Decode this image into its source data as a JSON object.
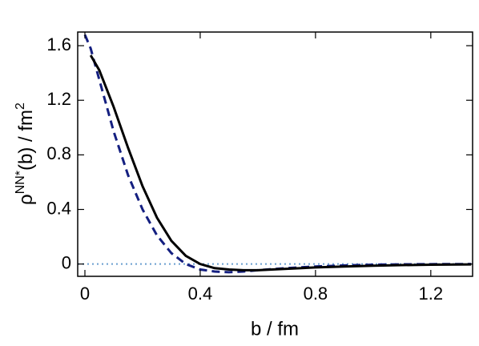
{
  "chart_data": {
    "type": "line",
    "xlabel": "b / fm",
    "ylabel_parts": [
      {
        "text": "ρ"
      },
      {
        "text": "NN*",
        "sup": true
      },
      {
        "text": "(b) / fm"
      },
      {
        "text": "2",
        "sup": true
      }
    ],
    "xlim": [
      -0.025,
      1.345
    ],
    "ylim": [
      -0.09,
      1.7
    ],
    "xticks": [
      0,
      0.4,
      0.8,
      1.2
    ],
    "yticks": [
      0,
      0.4,
      0.8,
      1.2,
      1.6
    ],
    "series": [
      {
        "color": "#6a9fcf",
        "dash": "2 4",
        "width": 2,
        "x": [
          -0.025,
          1.345
        ],
        "values": [
          0,
          0
        ]
      },
      {
        "color": "#141f80",
        "dash": "10 6",
        "width": 3,
        "x": [
          0,
          0.02,
          0.05,
          0.1,
          0.15,
          0.2,
          0.25,
          0.3,
          0.35,
          0.4,
          0.45,
          0.5,
          0.55,
          0.6,
          0.7,
          0.8,
          0.9,
          1.0,
          1.1,
          1.2,
          1.34
        ],
        "values": [
          1.68,
          1.58,
          1.35,
          0.97,
          0.65,
          0.4,
          0.21,
          0.08,
          0.0,
          -0.04,
          -0.055,
          -0.06,
          -0.055,
          -0.045,
          -0.03,
          -0.018,
          -0.01,
          -0.005,
          -0.002,
          -0.001,
          0
        ]
      },
      {
        "color": "#000000",
        "dash": "",
        "width": 3,
        "x": [
          0.02,
          0.05,
          0.1,
          0.15,
          0.2,
          0.25,
          0.3,
          0.35,
          0.4,
          0.45,
          0.5,
          0.55,
          0.6,
          0.7,
          0.8,
          0.9,
          1.0,
          1.1,
          1.2,
          1.34
        ],
        "values": [
          1.53,
          1.42,
          1.15,
          0.85,
          0.57,
          0.34,
          0.17,
          0.06,
          0.0,
          -0.03,
          -0.04,
          -0.045,
          -0.045,
          -0.035,
          -0.025,
          -0.018,
          -0.012,
          -0.008,
          -0.005,
          -0.003
        ]
      }
    ]
  }
}
